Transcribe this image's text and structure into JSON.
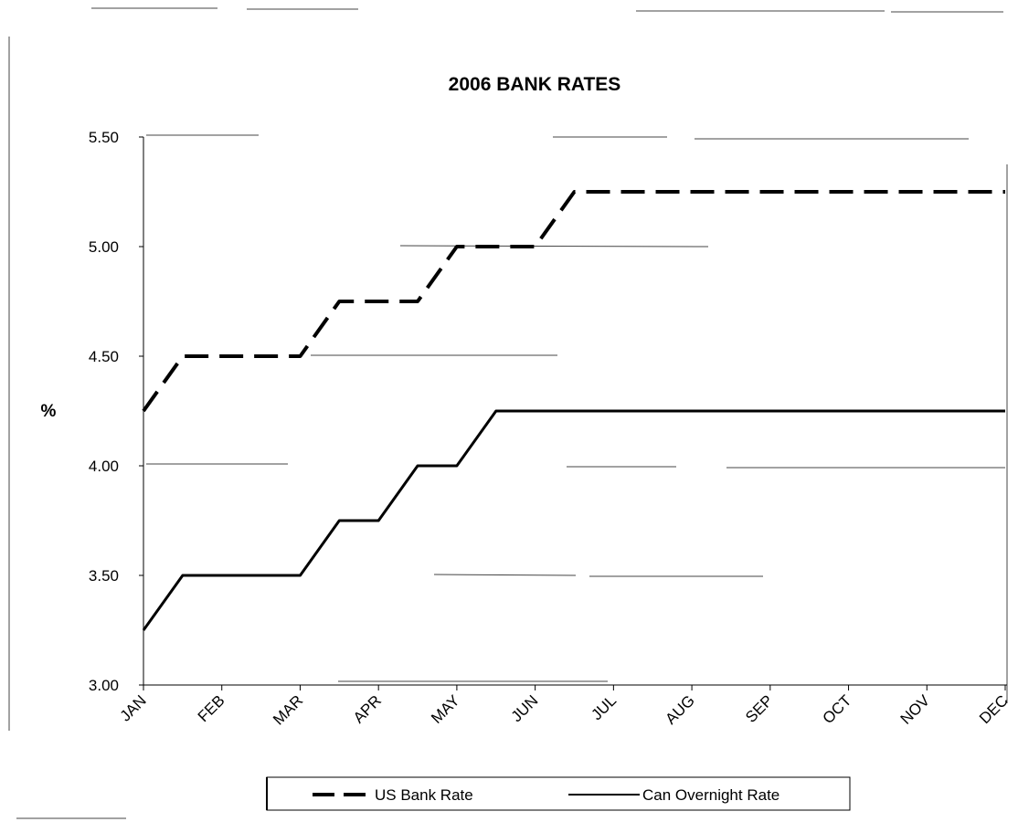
{
  "chart_data": {
    "type": "line",
    "title": "2006 BANK RATES",
    "ylabel": "%",
    "xlabel": "",
    "categories": [
      "JAN",
      "FEB",
      "MAR",
      "APR",
      "MAY",
      "JUN",
      "JUL",
      "AUG",
      "SEP",
      "OCT",
      "NOV",
      "DEC"
    ],
    "ylim": [
      3.0,
      5.5
    ],
    "yticks": [
      "3.00",
      "3.50",
      "4.00",
      "4.50",
      "5.00",
      "5.50"
    ],
    "ytick_values": [
      3.0,
      3.5,
      4.0,
      4.5,
      5.0,
      5.5
    ],
    "grid": false,
    "legend_position": "bottom",
    "series": [
      {
        "name": "US Bank Rate",
        "style": "dashed",
        "color": "#000000",
        "x": [
          0,
          0.5,
          2,
          2.5,
          3.5,
          4,
          5,
          5.5,
          11
        ],
        "values": [
          4.25,
          4.5,
          4.5,
          4.75,
          4.75,
          5.0,
          5.0,
          5.25,
          5.25
        ]
      },
      {
        "name": "Can Overnight Rate",
        "style": "solid",
        "color": "#000000",
        "x": [
          0,
          0.5,
          2,
          2.5,
          3,
          3.5,
          4,
          4.5,
          11
        ],
        "values": [
          3.25,
          3.5,
          3.5,
          3.75,
          3.75,
          4.0,
          4.0,
          4.25,
          4.25
        ]
      }
    ]
  }
}
